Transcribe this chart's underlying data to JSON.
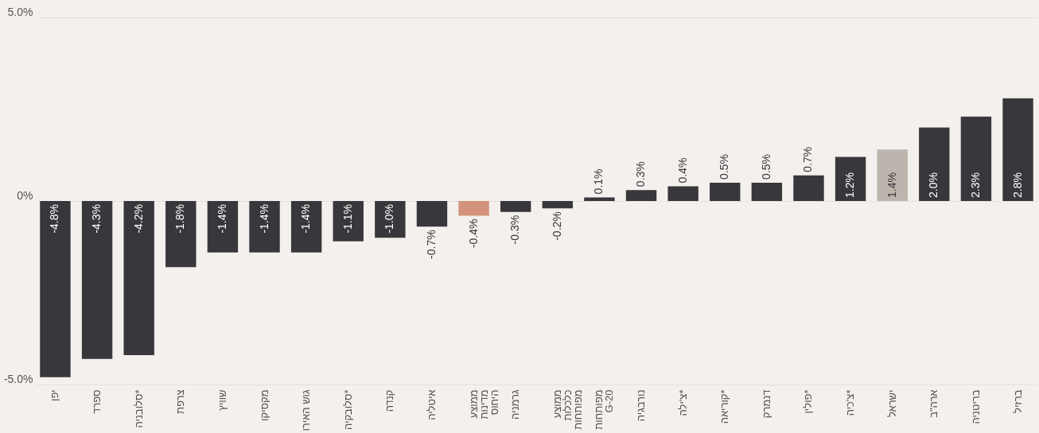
{
  "chart_data": {
    "type": "bar",
    "categories": [
      "יפן",
      "ספרד",
      "סלובניה*",
      "צרפת",
      "שוויץ",
      "מקסיקו",
      "גוש האירו",
      "סלובקיה*",
      "קנדה",
      "איטליה",
      "ממוצע\nמדינות\nהיחוס",
      "גרמניה",
      "ממוצע\nכלכלות\nמפותחות",
      "מפותחות\nG-20",
      "נורבגיה",
      "צ'ילה*",
      "קוריאה*",
      "דנמרק",
      "פולין*",
      "צ'כיה*",
      "ישראל",
      "ארה\"ב",
      "בריטניה",
      "ברזיל"
    ],
    "values": [
      -4.8,
      -4.3,
      -4.2,
      -1.8,
      -1.4,
      -1.4,
      -1.4,
      -1.1,
      -1.0,
      -0.7,
      -0.4,
      -0.3,
      -0.2,
      0.1,
      0.3,
      0.4,
      0.5,
      0.5,
      0.7,
      1.2,
      1.4,
      2.0,
      2.3,
      2.8
    ],
    "colors": [
      "#38373b",
      "#38373b",
      "#38373b",
      "#38373b",
      "#38373b",
      "#38373b",
      "#38373b",
      "#38373b",
      "#38373b",
      "#38373b",
      "#d4937d",
      "#38373b",
      "#38373b",
      "#38373b",
      "#38373b",
      "#38373b",
      "#38373b",
      "#38373b",
      "#38373b",
      "#38373b",
      "#bdb5ad",
      "#38373b",
      "#38373b",
      "#38373b"
    ],
    "value_labels": [
      "-4.8%",
      "-4.3%",
      "-4.2%",
      "-1.8%",
      "-1.4%",
      "-1.4%",
      "-1.4%",
      "-1.1%",
      "-1.0%",
      "-0.7%",
      "-0.4%",
      "-0.3%",
      "-0.2%",
      "0.1%",
      "0.3%",
      "0.4%",
      "0.5%",
      "0.5%",
      "0.7%",
      "1.2%",
      "1.4%",
      "2.0%",
      "2.3%",
      "2.8%"
    ],
    "ylim": [
      -5,
      5
    ],
    "yticks": [
      {
        "value": 5,
        "label": "5.0%"
      },
      {
        "value": 0,
        "label": "0%"
      },
      {
        "value": -5,
        "label": "-5.0%"
      }
    ],
    "grid": "y"
  }
}
